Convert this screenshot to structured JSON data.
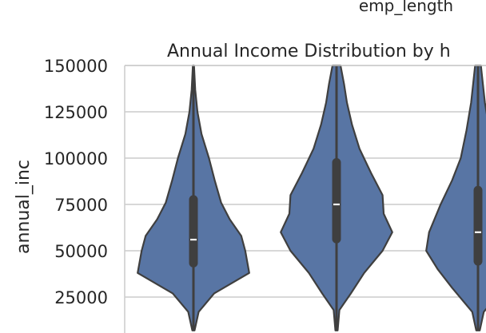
{
  "chart_data": {
    "type": "violin",
    "suptitle": "emp_length",
    "title": "Annual Income Distribution by h",
    "ylabel": "annual_inc",
    "ylim": [
      7000,
      150000
    ],
    "yticks": [
      25000,
      50000,
      75000,
      100000,
      125000,
      150000
    ],
    "ytick_labels": [
      "25000",
      "50000",
      "75000",
      "100000",
      "125000",
      "150000"
    ],
    "grid": true,
    "color": "#5875a4",
    "edge_color": "#3f3f3f",
    "violins": [
      {
        "median": 56000,
        "q1": 41000,
        "q3": 80000,
        "whisker_low": 7000,
        "whisker_high": 150000,
        "profile": [
          [
            7000,
            0.02
          ],
          [
            17000,
            0.09
          ],
          [
            27000,
            0.36
          ],
          [
            38000,
            0.97
          ],
          [
            50000,
            0.9
          ],
          [
            58000,
            0.83
          ],
          [
            67000,
            0.63
          ],
          [
            76000,
            0.48
          ],
          [
            88000,
            0.37
          ],
          [
            100000,
            0.27
          ],
          [
            113000,
            0.14
          ],
          [
            125000,
            0.07
          ],
          [
            137000,
            0.03
          ],
          [
            150000,
            0.01
          ]
        ]
      },
      {
        "median": 75000,
        "q1": 54000,
        "q3": 100000,
        "whisker_low": 7000,
        "whisker_high": 150000,
        "profile": [
          [
            7000,
            0.02
          ],
          [
            18000,
            0.05
          ],
          [
            27000,
            0.25
          ],
          [
            38000,
            0.48
          ],
          [
            50000,
            0.8
          ],
          [
            60000,
            0.97
          ],
          [
            70000,
            0.82
          ],
          [
            80000,
            0.8
          ],
          [
            92000,
            0.6
          ],
          [
            105000,
            0.4
          ],
          [
            118000,
            0.27
          ],
          [
            130000,
            0.18
          ],
          [
            140000,
            0.13
          ],
          [
            150000,
            0.07
          ]
        ]
      },
      {
        "median": 60000,
        "q1": 42000,
        "q3": 85000,
        "whisker_low": 7000,
        "whisker_high": 150000,
        "profile": [
          [
            7000,
            0.03
          ],
          [
            17000,
            0.1
          ],
          [
            30000,
            0.45
          ],
          [
            40000,
            0.7
          ],
          [
            50000,
            0.9
          ],
          [
            60000,
            0.85
          ],
          [
            75000,
            0.65
          ],
          [
            88000,
            0.45
          ],
          [
            100000,
            0.3
          ],
          [
            115000,
            0.2
          ],
          [
            130000,
            0.12
          ],
          [
            150000,
            0.05
          ]
        ]
      }
    ]
  }
}
